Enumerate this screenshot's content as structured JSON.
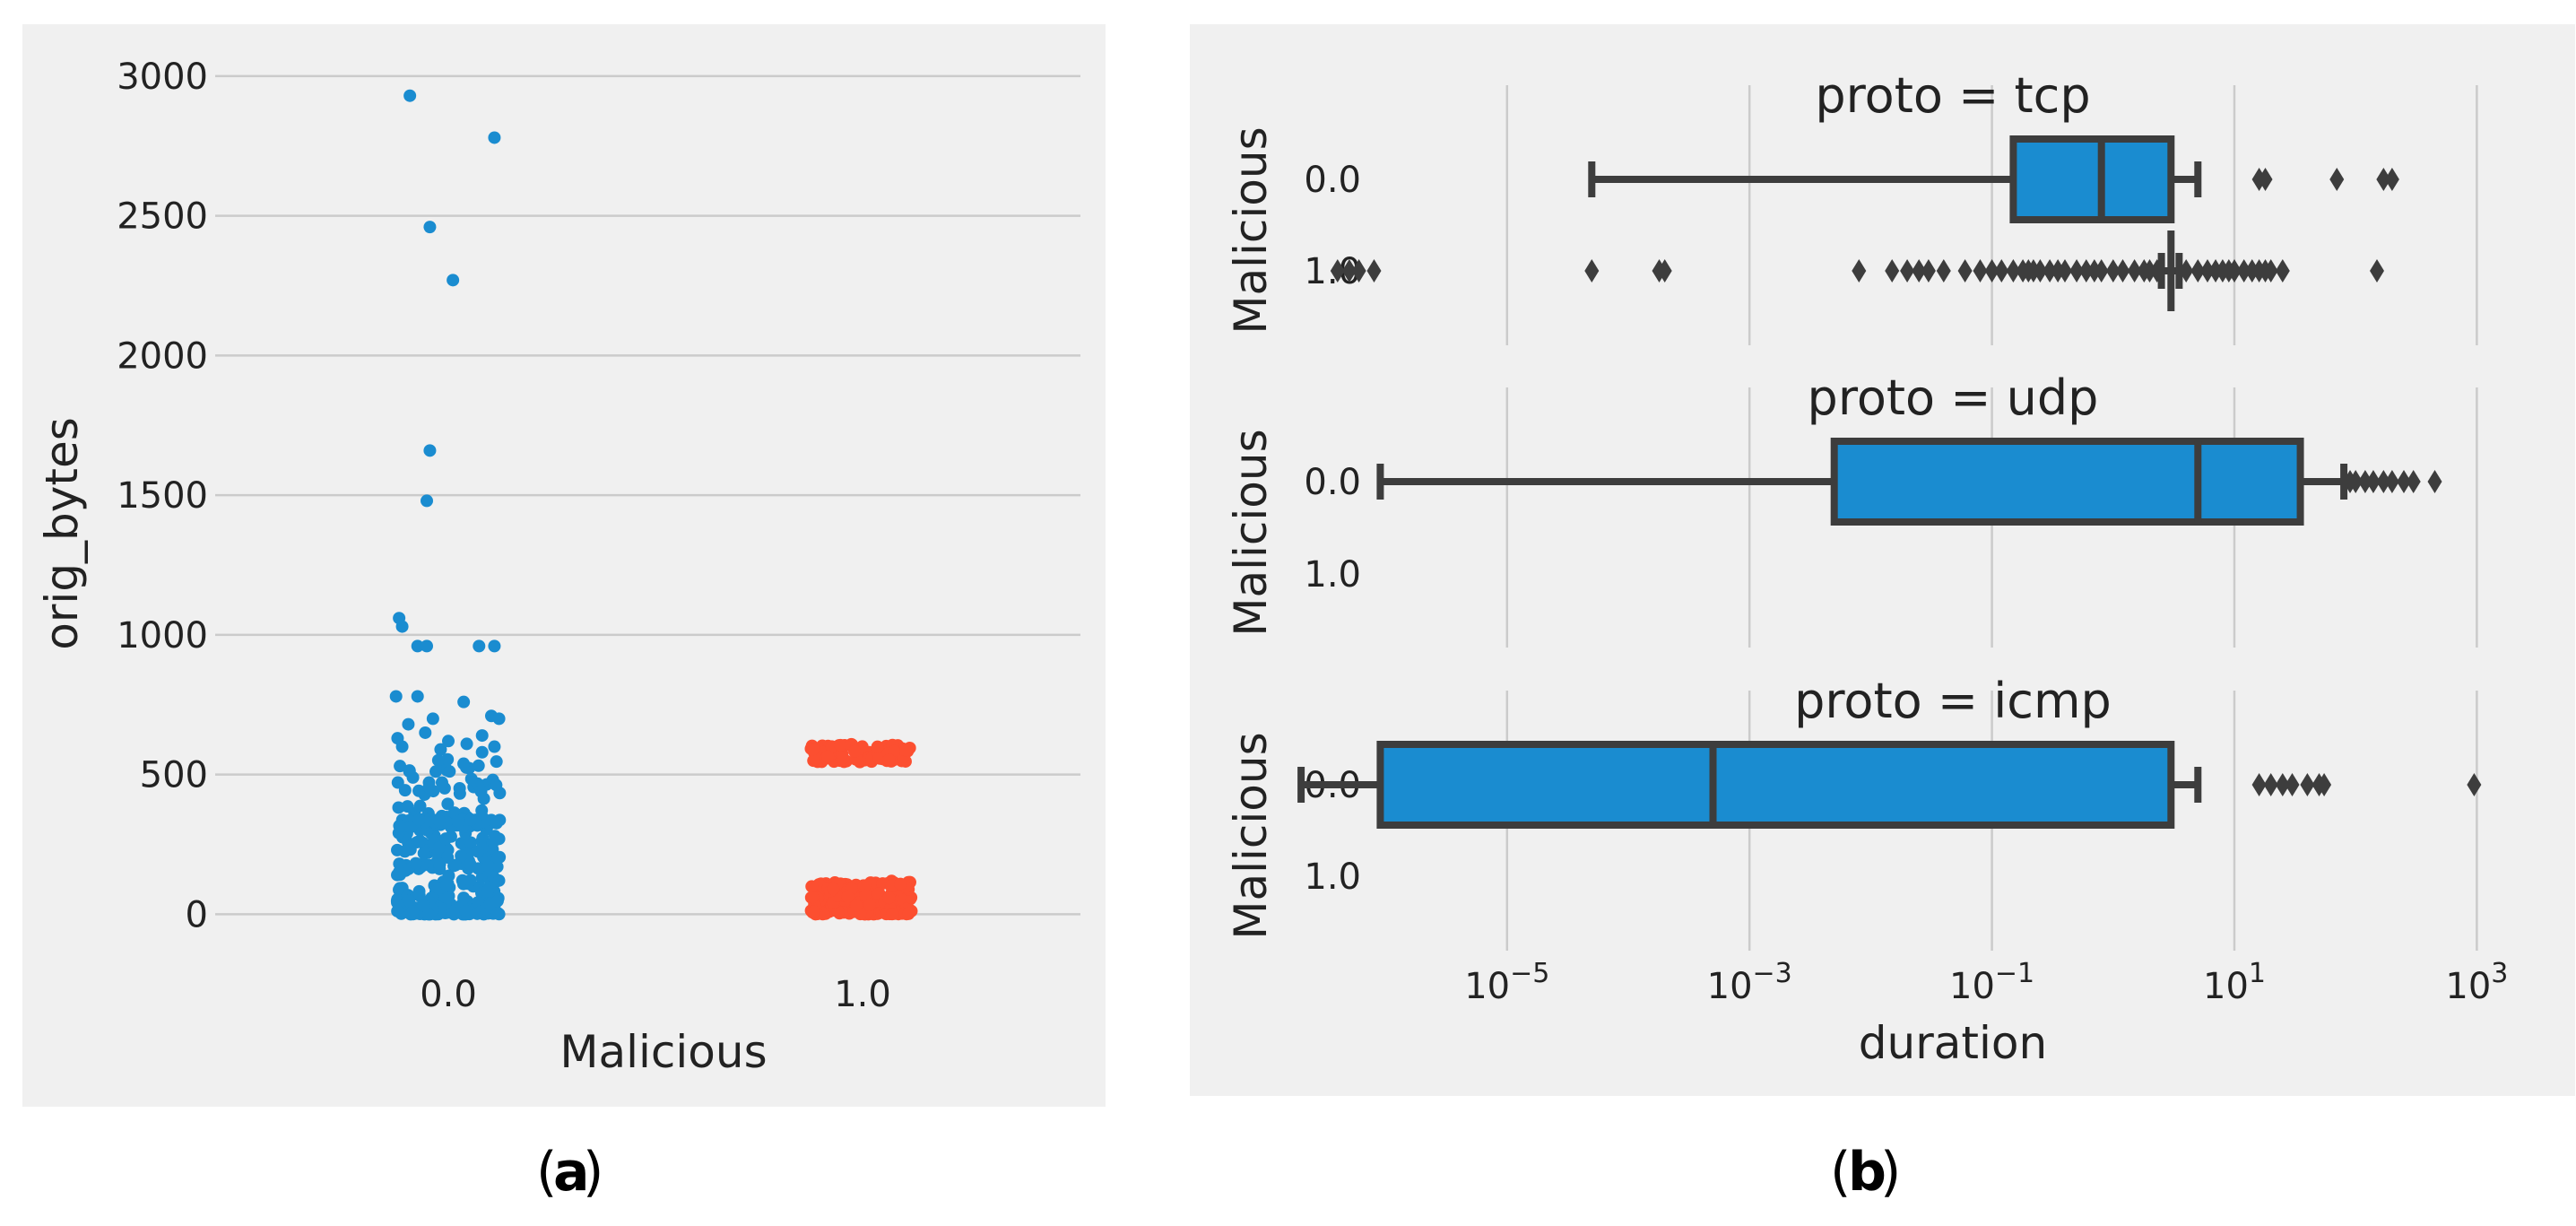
{
  "captions": {
    "a": "a",
    "b": "b"
  },
  "chart_data": [
    {
      "type": "scatter",
      "style": "strip",
      "title": "",
      "xlabel": "Malicious",
      "ylabel": "orig_bytes",
      "categories": [
        "0.0",
        "1.0"
      ],
      "yticks": [
        "0",
        "500",
        "1000",
        "1500",
        "2000",
        "2500",
        "3000"
      ],
      "ylim": [
        -50,
        3080
      ],
      "grid": "horizontal",
      "colors": [
        "#1a8cd0",
        "#fc4f30"
      ],
      "points": [
        {
          "x": 0,
          "y": 2930,
          "jitter": -0.25
        },
        {
          "x": 0,
          "y": 2780,
          "jitter": 0.3
        },
        {
          "x": 0,
          "y": 2460,
          "jitter": -0.12
        },
        {
          "x": 0,
          "y": 2270,
          "jitter": 0.03
        },
        {
          "x": 0,
          "y": 1660,
          "jitter": -0.12
        },
        {
          "x": 0,
          "y": 1480,
          "jitter": -0.14
        },
        {
          "x": 0,
          "y": 1060,
          "jitter": -0.32
        },
        {
          "x": 0,
          "y": 1030,
          "jitter": -0.3
        },
        {
          "x": 0,
          "y": 960,
          "jitter": -0.2
        },
        {
          "x": 0,
          "y": 960,
          "jitter": -0.14
        },
        {
          "x": 0,
          "y": 960,
          "jitter": 0.2
        },
        {
          "x": 0,
          "y": 960,
          "jitter": 0.3
        },
        {
          "x": 0,
          "y": 780,
          "jitter": -0.34
        },
        {
          "x": 0,
          "y": 780,
          "jitter": -0.2
        },
        {
          "x": 0,
          "y": 760,
          "jitter": 0.1
        },
        {
          "x": 0,
          "y": 710,
          "jitter": 0.28
        },
        {
          "x": 0,
          "y": 700,
          "jitter": -0.1
        },
        {
          "x": 0,
          "y": 700,
          "jitter": 0.33
        },
        {
          "x": 0,
          "y": 680,
          "jitter": -0.26
        },
        {
          "x": 0,
          "y": 650,
          "jitter": -0.15
        },
        {
          "x": 0,
          "y": 640,
          "jitter": 0.22
        },
        {
          "x": 0,
          "y": 630,
          "jitter": -0.33
        },
        {
          "x": 0,
          "y": 620,
          "jitter": 0.0
        },
        {
          "x": 0,
          "y": 610,
          "jitter": 0.12
        },
        {
          "x": 0,
          "y": 600,
          "jitter": -0.3
        },
        {
          "x": 0,
          "y": 600,
          "jitter": 0.3
        },
        {
          "x": 0,
          "y": 590,
          "jitter": -0.05
        },
        {
          "x": 0,
          "y": 580,
          "jitter": 0.22
        }
      ],
      "clusters": [
        {
          "x": 0,
          "y_min": 0,
          "y_max": 560,
          "count": 300,
          "jitter": 0.35,
          "bias": 2.2
        },
        {
          "x": 0,
          "y_min": 310,
          "y_max": 340,
          "count": 45,
          "jitter": 0.35,
          "bias": 1.0
        },
        {
          "x": 1,
          "y_min": 545,
          "y_max": 610,
          "count": 90,
          "jitter": 0.35,
          "bias": 1.0
        },
        {
          "x": 1,
          "y_min": 0,
          "y_max": 120,
          "count": 200,
          "jitter": 0.35,
          "bias": 1.5
        }
      ]
    },
    {
      "type": "box",
      "orientation": "horizontal",
      "xlabel": "duration",
      "xscale": "log",
      "xlim_log10": [
        -6.5,
        3.5
      ],
      "xticks_log10": [
        -5,
        -3,
        -1,
        1,
        3
      ],
      "xtick_base": "10",
      "color": "#1a8cd0",
      "categories": [
        "0.0",
        "1.0"
      ],
      "ylabel": "Malicious",
      "panels": [
        {
          "title": "proto = tcp",
          "boxes": [
            {
              "category": "0.0",
              "whisker_low": 5e-05,
              "q1": 0.15,
              "median": 0.8,
              "q3": 3.0,
              "whisker_high": 5.0,
              "outliers": [
                16,
                18,
                70,
                170,
                200
              ]
            },
            {
              "category": "1.0",
              "whisker_low": 2.5,
              "q1": 3.0,
              "median": 3.0,
              "q3": 3.0,
              "whisker_high": 3.5,
              "outliers": [
                4e-07,
                5e-07,
                6e-07,
                8e-07,
                5e-05,
                0.00018,
                0.0002,
                0.008,
                0.015,
                0.02,
                0.025,
                0.03,
                0.04,
                0.06,
                0.08,
                0.1,
                0.12,
                0.15,
                0.18,
                0.2,
                0.22,
                0.25,
                0.3,
                0.35,
                0.4,
                0.5,
                0.6,
                0.7,
                0.8,
                1.0,
                1.2,
                1.5,
                1.8,
                2.0,
                2.3,
                4,
                5,
                6,
                7,
                8,
                9,
                10,
                12,
                14,
                16,
                18,
                20,
                25,
                150
              ]
            }
          ]
        },
        {
          "title": "proto = udp",
          "boxes": [
            {
              "category": "0.0",
              "whisker_low": 9e-07,
              "q1": 0.005,
              "median": 5.0,
              "q3": 35,
              "whisker_high": 80,
              "outliers": [
                90,
                100,
                120,
                140,
                170,
                200,
                250,
                300,
                450
              ]
            }
          ]
        },
        {
          "title": "proto = icmp",
          "boxes": [
            {
              "category": "0.0",
              "whisker_low": 2e-07,
              "q1": 9e-07,
              "median": 0.0005,
              "q3": 3.0,
              "whisker_high": 5.0,
              "outliers": [
                16,
                20,
                25,
                30,
                40,
                50,
                55,
                950
              ]
            }
          ]
        }
      ]
    }
  ]
}
